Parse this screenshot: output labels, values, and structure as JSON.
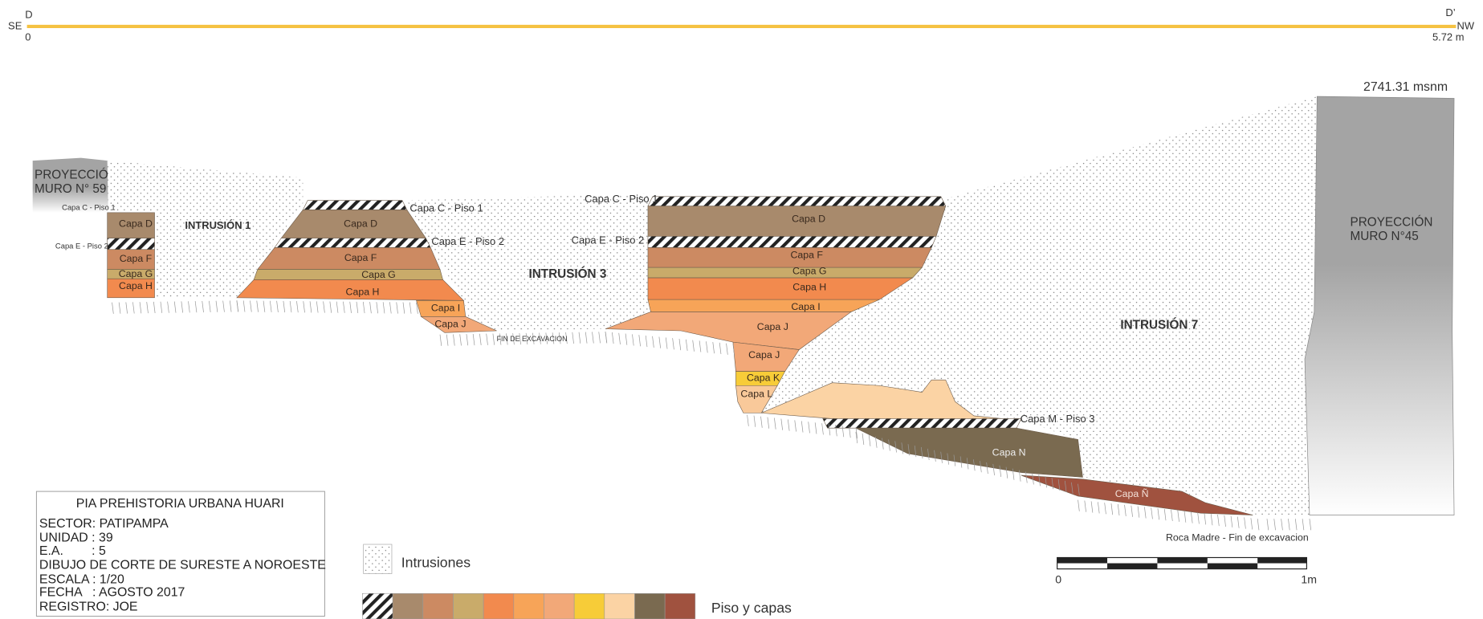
{
  "header": {
    "start_side": "SE",
    "start_point": "D",
    "start_distance": "0",
    "end_point": "D’",
    "end_side": "NW",
    "end_distance": "5.72 m"
  },
  "elevation": "2741.31 msnm",
  "walls": [
    {
      "lines": [
        "PROYECCIÓN",
        "MURO N° 59"
      ]
    },
    {
      "lines": [
        "PROYECCIÓN",
        "MURO N°45"
      ]
    }
  ],
  "intrusions": [
    "INTRUSIÓN 1",
    "INTRUSIÓN 3",
    "INTRUSIÓN 7"
  ],
  "layer_labels": [
    "Capa D",
    "Capa F",
    "Capa G",
    "Capa H",
    "Capa D",
    "Capa F",
    "Capa G",
    "Capa H",
    "Capa I",
    "Capa J",
    "Capa D",
    "Capa F",
    "Capa G",
    "Capa H",
    "Capa I",
    "Capa J",
    "Capa J",
    "Capa K",
    "Capa L",
    "Capa N",
    "Capa Ñ"
  ],
  "floor_labels": [
    "Capa C - Piso 1",
    "Capa E - Piso 2",
    "Capa C - Piso 1",
    "Capa E - Piso 2",
    "Capa C - Piso 1",
    "Capa E - Piso 2",
    "Capa M - Piso 3"
  ],
  "notes": [
    "FIN DE EXCAVACION",
    "Roca Madre - Fin de excavacion"
  ],
  "info_box": {
    "title": "PIA PREHISTORIA URBANA HUARI",
    "lines": [
      "SECTOR: PATIPAMPA",
      "UNIDAD : 39",
      "E.A.        : 5",
      "DIBUJO DE CORTE DE SURESTE A NOROESTE",
      "ESCALA : 1/20",
      "FECHA   : AGOSTO 2017",
      "REGISTRO: JOE"
    ]
  },
  "legend": {
    "intrusions": "Intrusiones",
    "layers": "Piso y capas"
  },
  "scale": {
    "start": "0",
    "end": "1m"
  }
}
